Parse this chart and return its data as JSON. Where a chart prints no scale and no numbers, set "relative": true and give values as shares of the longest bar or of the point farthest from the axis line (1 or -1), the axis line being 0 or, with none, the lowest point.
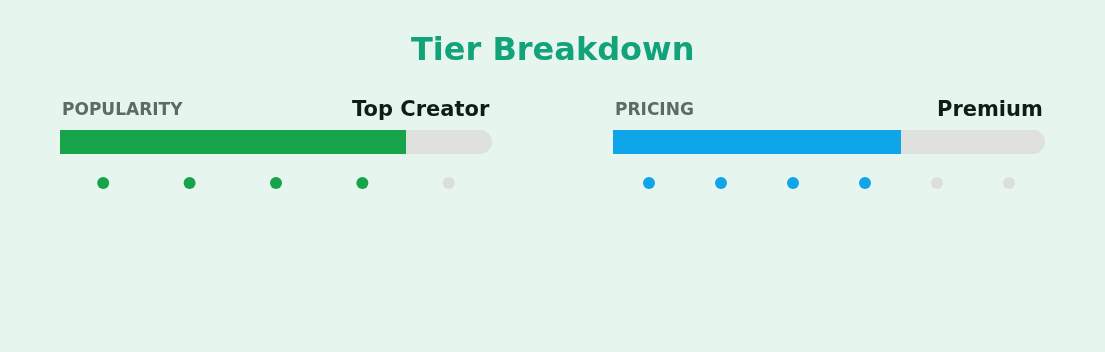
{
  "chart_data": [
    {
      "type": "bar",
      "orientation": "horizontal",
      "stacked": true,
      "relative": true,
      "title": "POPULARITY",
      "annotations": [
        "Tier Breakdown",
        "Top Creator"
      ],
      "categories": [
        null
      ],
      "series": [
        {
          "color": "#16a34a",
          "values": [
            0.8
          ]
        },
        {
          "color": "#dfe1df",
          "values": [
            0.2
          ]
        }
      ]
    },
    {
      "type": "other",
      "colors": [
        "#16a34a",
        "#16a34a",
        "#16a34a",
        "#16a34a",
        "#dcdedc"
      ]
    },
    {
      "type": "bar",
      "orientation": "horizontal",
      "stacked": true,
      "relative": true,
      "title": "PRICING",
      "annotations": [
        "Premium"
      ],
      "categories": [
        null
      ],
      "series": [
        {
          "color": "#0ea5e9",
          "values": [
            0.667
          ]
        },
        {
          "color": "#dfe1df",
          "values": [
            0.333
          ]
        }
      ]
    },
    {
      "type": "other",
      "colors": [
        "#0ea5e9",
        "#0ea5e9",
        "#0ea5e9",
        "#0ea5e9",
        "#dcdedc",
        "#dcdedc"
      ]
    }
  ]
}
